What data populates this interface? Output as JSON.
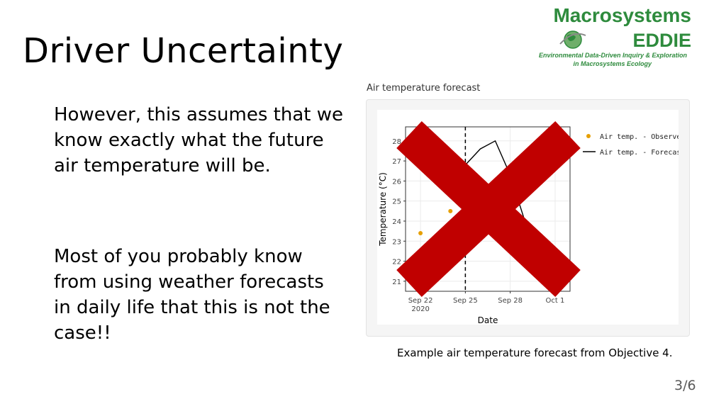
{
  "slide": {
    "title": "Driver Uncertainty",
    "paragraph1": "However, this assumes that we know exactly what the future air temperature will be.",
    "paragraph2": "Most of you probably know from using weather forecasts in daily life that this is not the case!!",
    "page_number": "3/6"
  },
  "logo": {
    "line1": "Macrosystems",
    "line2": "EDDIE",
    "tagline1": "Environmental Data-Driven Inquiry & Exploration",
    "tagline2": "in Macrosystems Ecology",
    "icon": "globe-icon"
  },
  "figure": {
    "panel_title": "Air temperature forecast",
    "caption": "Example air temperature forecast from Objective 4.",
    "overlay_icon": "red-x-icon",
    "overlay_color": "#c00000"
  },
  "chart_data": {
    "type": "line",
    "xlabel": "Date",
    "ylabel": "Temperature (°C)",
    "x_ticks": [
      "Sep 22\n2020",
      "Sep 25",
      "Sep 28",
      "Oct 1"
    ],
    "y_ticks": [
      21,
      22,
      23,
      24,
      25,
      26,
      27,
      28
    ],
    "ylim": [
      20.5,
      28.7
    ],
    "xlim_days": [
      "2020-09-21",
      "2020-10-02"
    ],
    "forecast_start": "2020-09-25",
    "grid": true,
    "legend_position": "right",
    "series": [
      {
        "name": "Air temp. - Observed",
        "kind": "points",
        "color": "#e69f00",
        "points": [
          {
            "x": "2020-09-22",
            "y": 23.4
          },
          {
            "x": "2020-09-24",
            "y": 24.5
          }
        ]
      },
      {
        "name": "Air temp. - Forecast",
        "kind": "line",
        "color": "#000000",
        "points": [
          {
            "x": "2020-09-25",
            "y": 26.8
          },
          {
            "x": "2020-09-26",
            "y": 27.6
          },
          {
            "x": "2020-09-27",
            "y": 28.0
          },
          {
            "x": "2020-09-28",
            "y": 26.3
          },
          {
            "x": "2020-09-30",
            "y": 21.6
          },
          {
            "x": "2020-10-01",
            "y": 21.1
          },
          {
            "x": "2020-10-02",
            "y": 22.0
          }
        ]
      }
    ]
  }
}
